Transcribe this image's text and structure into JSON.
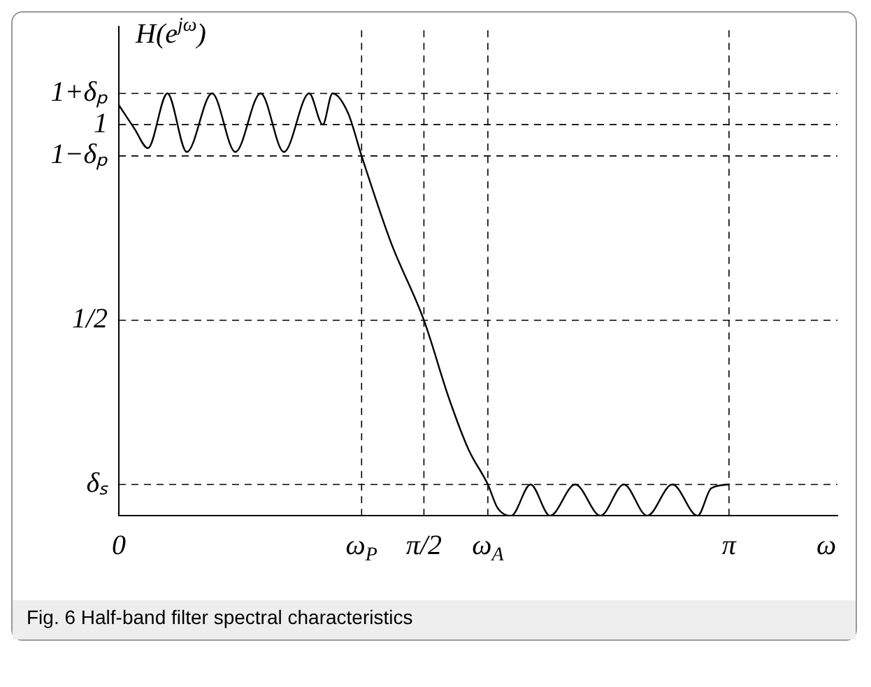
{
  "chart_data": {
    "type": "line",
    "ylabel": "H(e$^{jω}$)",
    "xlabel": "ω",
    "x": [
      0,
      0.08,
      0.15,
      0.25,
      0.35,
      0.48,
      0.6,
      0.73,
      0.85,
      0.98,
      1.05,
      1.1,
      1.18,
      1.25,
      1.4,
      1.5708,
      1.7,
      1.8,
      1.9,
      1.95,
      2.02,
      2.12,
      2.22,
      2.35,
      2.48,
      2.6,
      2.72,
      2.85,
      2.98,
      3.05,
      3.1416
    ],
    "series": [
      {
        "color": "#000000",
        "values": [
          1.05,
          0.99,
          0.94,
          1.08,
          0.93,
          1.08,
          0.93,
          1.08,
          0.93,
          1.08,
          1.0,
          1.08,
          1.03,
          0.92,
          0.7,
          0.5,
          0.3,
          0.17,
          0.08,
          0.02,
          0,
          0.08,
          0,
          0.08,
          0,
          0.08,
          0,
          0.08,
          0,
          0.07,
          0.08
        ]
      }
    ],
    "xlim": [
      0,
      3.7
    ],
    "ylim": [
      0,
      1.25
    ],
    "xticks": [
      0,
      {
        "value": 1.25,
        "label": "ω$_{P}$"
      },
      {
        "value": 1.5708,
        "label": "π/2"
      },
      {
        "value": 1.9,
        "label": "ω$_{A}$"
      },
      {
        "value": 3.1416,
        "label": "π"
      }
    ],
    "yticks": [
      {
        "value": 0.08,
        "label": "δₛ"
      },
      {
        "value": 0.5,
        "label": "1/2"
      },
      {
        "value": 0.92,
        "label": "1−δₚ"
      },
      {
        "value": 1,
        "label": "1"
      },
      {
        "value": 1.08,
        "label": "1+δₚ"
      }
    ],
    "ref_lines": [
      {
        "axis": "y",
        "value": 1.08,
        "line_style": "dashed"
      },
      {
        "axis": "y",
        "value": 1,
        "line_style": "dashed"
      },
      {
        "axis": "y",
        "value": 0.92,
        "line_style": "dashed"
      },
      {
        "axis": "y",
        "value": 0.5,
        "line_style": "dashed"
      },
      {
        "axis": "y",
        "value": 0.08,
        "line_style": "dashed"
      },
      {
        "axis": "x",
        "value": 1.25,
        "line_style": "dashed"
      },
      {
        "axis": "x",
        "value": 1.5708,
        "line_style": "dashed"
      },
      {
        "axis": "x",
        "value": 1.9,
        "line_style": "dashed"
      },
      {
        "axis": "x",
        "value": 3.1416,
        "line_style": "dashed"
      }
    ],
    "grid": false,
    "legend": false,
    "annotations": [
      "Fig. 6 Half-band filter spectral characteristics"
    ]
  }
}
